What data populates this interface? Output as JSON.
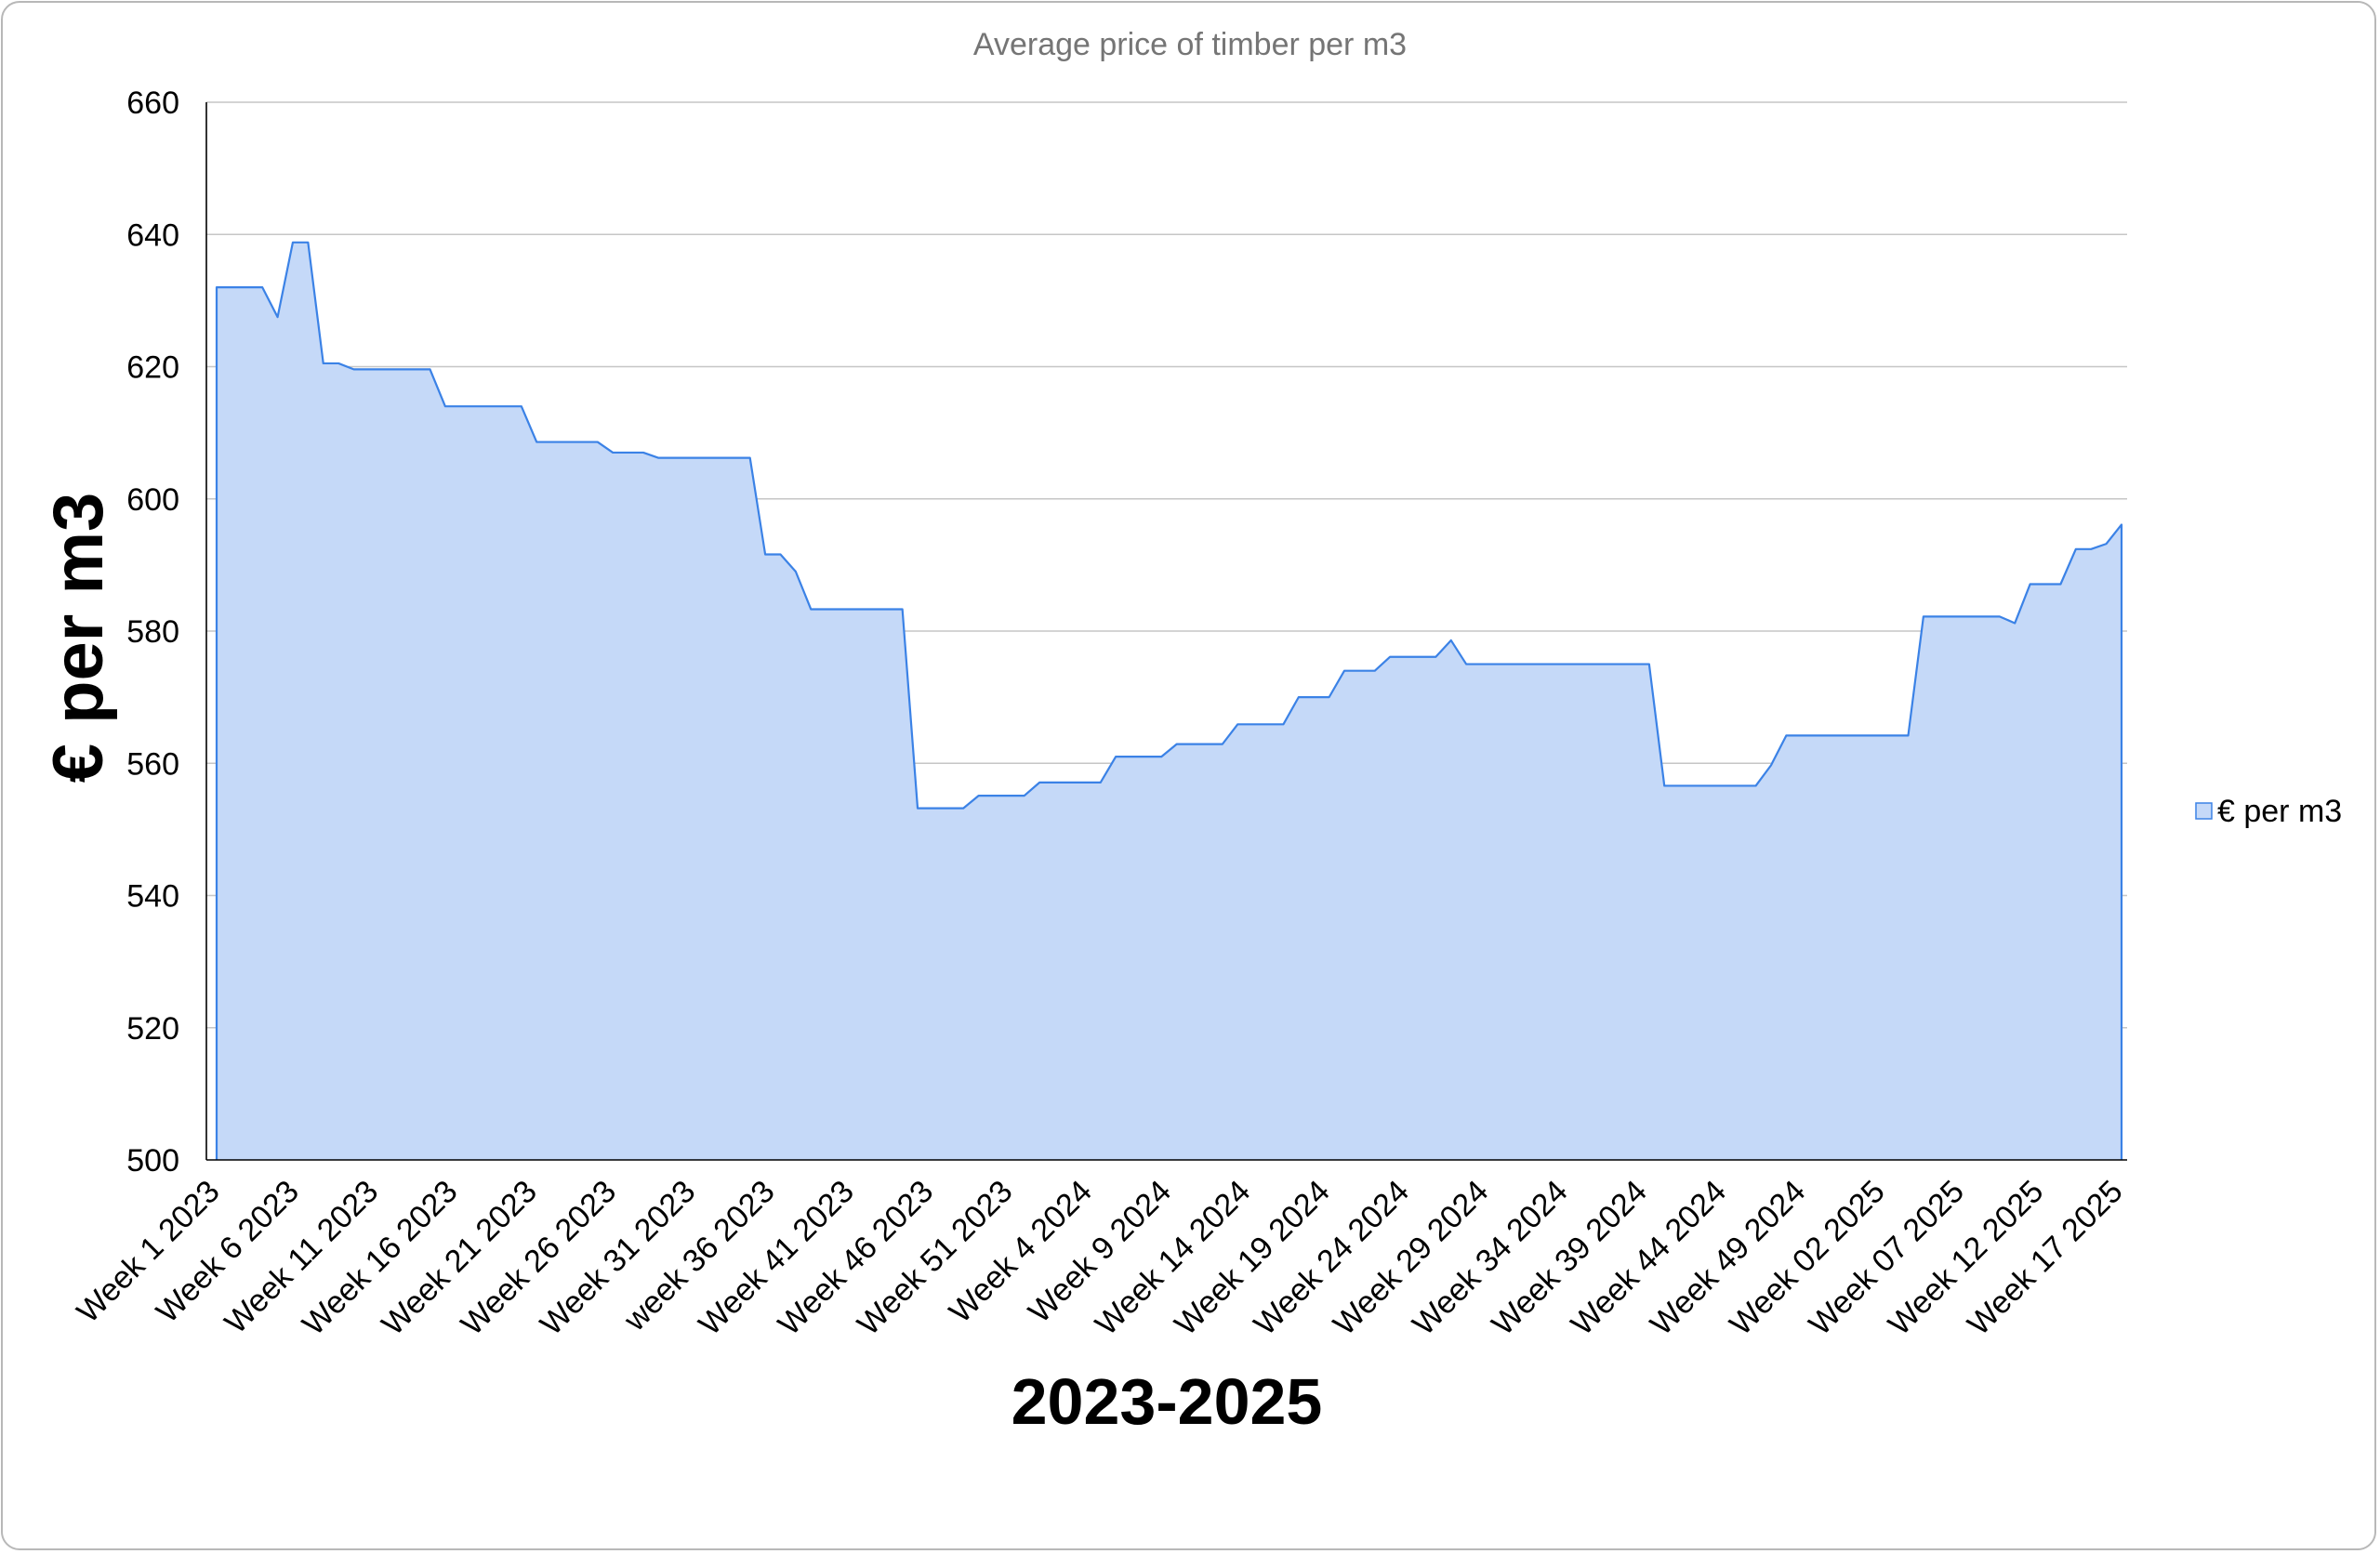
{
  "chart_data": {
    "type": "area",
    "title": "Average price of timber per m3",
    "xlabel": "2023-2025",
    "ylabel": "€ per m3",
    "ylim": [
      500,
      660
    ],
    "yticks": [
      500,
      520,
      540,
      560,
      580,
      600,
      620,
      640,
      660
    ],
    "grid": true,
    "legend_position": "right",
    "colors": {
      "fill": "#c5d9f8",
      "line": "#3b82e6"
    },
    "x_tick_labels": [
      "Week 1 2023",
      "Week 6 2023",
      "Week 11 2023",
      "Week 16 2023",
      "Week 21 2023",
      "Week 26 2023",
      "Week 31 2023",
      "week 36 2023",
      "Week 41 2023",
      "Week 46 2023",
      "Week 51 2023",
      "Week 4 2024",
      "Week 9 2024",
      "Week 14 2024",
      "Week 19 2024",
      "Week 24 2024",
      "Week 29 2024",
      "Week 34 2024",
      "Week 39 2024",
      "Week 44 2024",
      "Week 49 2024",
      "Week 02 2025",
      "Week 07 2025",
      "Week 12 2025",
      "Week 17 2025"
    ],
    "series": [
      {
        "name": "€ per m3",
        "values": [
          632,
          632,
          632,
          632,
          627.5,
          638.8,
          638.8,
          620.5,
          620.5,
          619.6,
          619.6,
          619.6,
          619.6,
          619.6,
          619.6,
          614,
          614,
          614,
          614,
          614,
          614,
          608.6,
          608.6,
          608.6,
          608.6,
          608.6,
          607,
          607,
          607,
          606.2,
          606.2,
          606.2,
          606.2,
          606.2,
          606.2,
          606.2,
          591.6,
          591.6,
          589,
          583.3,
          583.3,
          583.3,
          583.3,
          583.3,
          583.3,
          583.3,
          553.2,
          553.2,
          553.2,
          553.2,
          555.1,
          555.1,
          555.1,
          555.1,
          557.1,
          557.1,
          557.1,
          557.1,
          557.1,
          561,
          561,
          561,
          561,
          562.9,
          562.9,
          562.9,
          562.9,
          565.9,
          565.9,
          565.9,
          565.9,
          570,
          570,
          570,
          574,
          574,
          574,
          576.1,
          576.1,
          576.1,
          576.1,
          578.6,
          575,
          575,
          575,
          575,
          575,
          575,
          575,
          575,
          575,
          575,
          575,
          575,
          575,
          556.6,
          556.6,
          556.6,
          556.6,
          556.6,
          556.6,
          556.6,
          559.7,
          564.2,
          564.2,
          564.2,
          564.2,
          564.2,
          564.2,
          564.2,
          564.2,
          564.2,
          582.2,
          582.2,
          582.2,
          582.2,
          582.2,
          582.2,
          581.2,
          587.1,
          587.1,
          587.1,
          592.4,
          592.4,
          593.2,
          596.1
        ]
      }
    ]
  }
}
